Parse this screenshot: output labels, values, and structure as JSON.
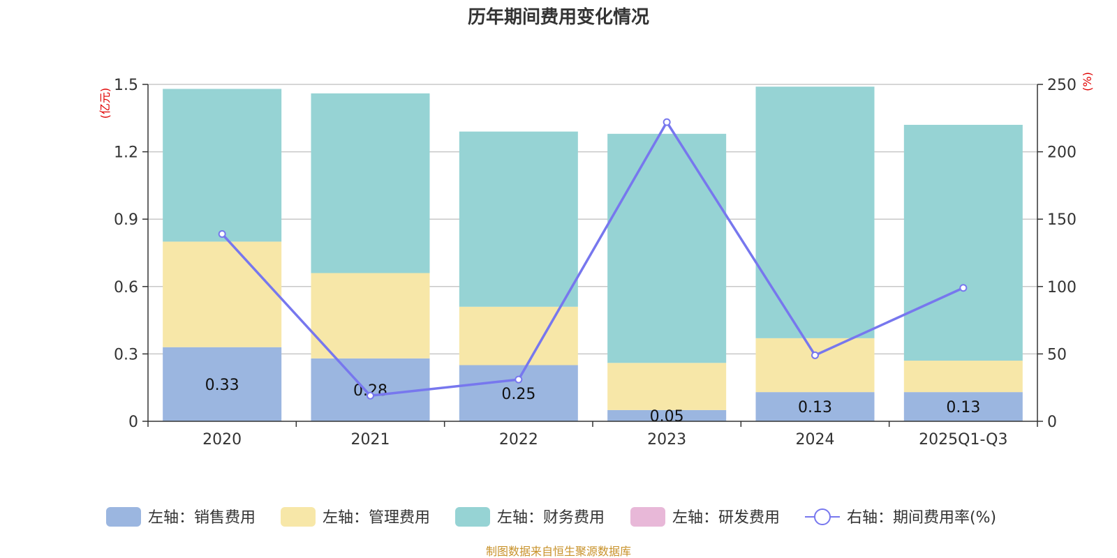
{
  "chart_data": {
    "type": "bar",
    "title": "历年期间费用变化情况",
    "categories": [
      "2020",
      "2021",
      "2022",
      "2023",
      "2024",
      "2025Q1-Q3"
    ],
    "left_axis": {
      "unit": "(亿元)",
      "ylim": [
        0,
        1.5
      ],
      "ticks": [
        "0",
        "0.3",
        "0.6",
        "0.9",
        "1.2",
        "1.5"
      ]
    },
    "right_axis": {
      "unit": "(%)",
      "ylim": [
        0,
        250
      ],
      "ticks": [
        "0",
        "50",
        "100",
        "150",
        "200",
        "250"
      ]
    },
    "series": [
      {
        "name": "左轴：销售费用",
        "kind": "bar",
        "axis": "left",
        "color": "#9bb6e0",
        "values": [
          0.33,
          0.28,
          0.25,
          0.05,
          0.13,
          0.13
        ],
        "labels": [
          "0.33",
          "0.28",
          "0.25",
          "0.05",
          "0.13",
          "0.13"
        ]
      },
      {
        "name": "左轴：管理费用",
        "kind": "bar",
        "axis": "left",
        "color": "#f7e7a8",
        "values": [
          0.47,
          0.38,
          0.26,
          0.21,
          0.24,
          0.14
        ]
      },
      {
        "name": "左轴：财务费用",
        "kind": "bar",
        "axis": "left",
        "color": "#96d3d4",
        "values": [
          0.68,
          0.8,
          0.78,
          1.02,
          1.12,
          1.05
        ]
      },
      {
        "name": "左轴：研发费用",
        "kind": "bar",
        "axis": "left",
        "color": "#e8b8d8",
        "values": [
          0,
          0,
          0,
          0,
          0,
          0
        ]
      },
      {
        "name": "右轴：期间费用率(%)",
        "kind": "line",
        "axis": "right",
        "color": "#7777ee",
        "values": [
          139,
          19,
          31,
          222,
          49,
          99
        ]
      }
    ],
    "legend_position": "bottom",
    "grid": true
  },
  "footer": {
    "source": "制图数据来自恒生聚源数据库"
  }
}
